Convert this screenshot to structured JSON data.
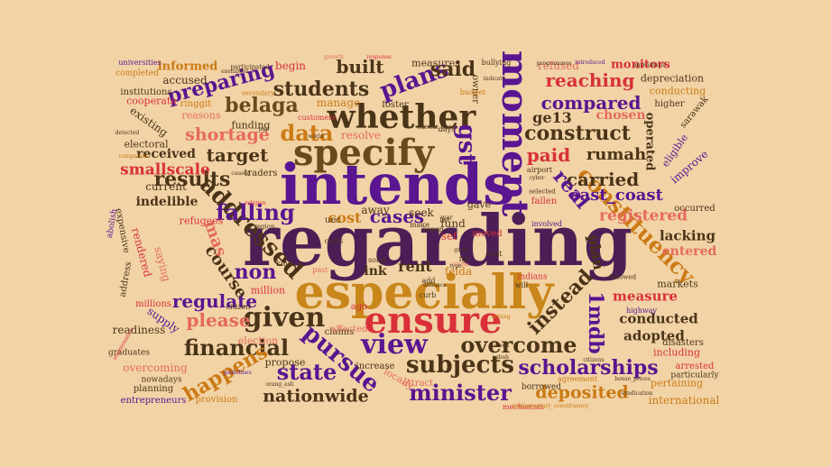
{
  "colors": {
    "background": "#f1d3a6",
    "palette": [
      "#5a1e6e",
      "#7a1aa0",
      "#cc7a14",
      "#d9303a",
      "#e56a5c",
      "#6b4a1a",
      "#4a3418"
    ]
  },
  "words": [
    {
      "text": "regarding",
      "color": "#4b1f55"
    },
    {
      "text": "intends",
      "color": "#5a1590"
    },
    {
      "text": "especially",
      "color": "#c9861a"
    },
    {
      "text": "specify",
      "color": "#6b4a1a"
    },
    {
      "text": "ensure",
      "color": "#d9303a"
    },
    {
      "text": "whether",
      "color": "#4a3418"
    },
    {
      "text": "moment",
      "color": "#5a1590"
    },
    {
      "text": "addressed",
      "color": "#4a3418"
    },
    {
      "text": "constituency",
      "color": "#cc7a14"
    },
    {
      "text": "pursue",
      "color": "#5a1590"
    },
    {
      "text": "view",
      "color": "#5a1590"
    },
    {
      "text": "given",
      "color": "#4a3418"
    },
    {
      "text": "minister",
      "color": "#5a1590"
    },
    {
      "text": "scholarships",
      "color": "#5a1590"
    },
    {
      "text": "subjects",
      "color": "#4a3418"
    },
    {
      "text": "overcome",
      "color": "#4a3418"
    },
    {
      "text": "financial",
      "color": "#4a3418"
    },
    {
      "text": "happens",
      "color": "#cc7a14"
    },
    {
      "text": "state",
      "color": "#5a1590"
    },
    {
      "text": "nationwide",
      "color": "#4a3418"
    },
    {
      "text": "deposited",
      "color": "#cc7a14"
    },
    {
      "text": "instead",
      "color": "#4a3418"
    },
    {
      "text": "1mdb",
      "color": "#5a1590"
    },
    {
      "text": "plans",
      "color": "#5a1590"
    },
    {
      "text": "gst",
      "color": "#5a1590"
    },
    {
      "text": "data",
      "color": "#cc7a14"
    },
    {
      "text": "students",
      "color": "#4a3418"
    },
    {
      "text": "preparing",
      "color": "#5a1590"
    },
    {
      "text": "belaga",
      "color": "#6b4a1a"
    },
    {
      "text": "shortage",
      "color": "#e56a5c"
    },
    {
      "text": "target",
      "color": "#4a3418"
    },
    {
      "text": "results",
      "color": "#4a3418"
    },
    {
      "text": "falling",
      "color": "#5a1590"
    },
    {
      "text": "cases",
      "color": "#5a1590"
    },
    {
      "text": "cost",
      "color": "#cc7a14"
    },
    {
      "text": "mas",
      "color": "#e56a5c"
    },
    {
      "text": "non",
      "color": "#5a1590"
    },
    {
      "text": "regulate",
      "color": "#5a1590"
    },
    {
      "text": "please",
      "color": "#e56a5c"
    },
    {
      "text": "course",
      "color": "#4a3418"
    },
    {
      "text": "rent",
      "color": "#4a3418"
    },
    {
      "text": "ink",
      "color": "#4a3418"
    },
    {
      "text": "compared",
      "color": "#5a1590"
    },
    {
      "text": "reaching",
      "color": "#d9303a"
    },
    {
      "text": "construct",
      "color": "#4a3418"
    },
    {
      "text": "paid",
      "color": "#d9303a"
    },
    {
      "text": "rumah",
      "color": "#4a3418"
    },
    {
      "text": "carried",
      "color": "#4a3418"
    },
    {
      "text": "east_coast",
      "color": "#5a1590"
    },
    {
      "text": "registered",
      "color": "#e56a5c"
    },
    {
      "text": "real",
      "color": "#5a1590"
    },
    {
      "text": "ge13",
      "color": "#4a3418"
    },
    {
      "text": "chosen",
      "color": "#e56a5c"
    },
    {
      "text": "said",
      "color": "#4a3418"
    },
    {
      "text": "built",
      "color": "#4a3418"
    },
    {
      "text": "measure",
      "color": "#d9303a"
    },
    {
      "text": "conducted",
      "color": "#4a3418"
    },
    {
      "text": "adopted",
      "color": "#4a3418"
    },
    {
      "text": "lacking",
      "color": "#4a3418"
    },
    {
      "text": "entered",
      "color": "#e56a5c"
    },
    {
      "text": "plan",
      "color": "#4a3418"
    },
    {
      "text": "smallscale",
      "color": "#d9303a"
    },
    {
      "text": "received",
      "color": "#4a3418"
    },
    {
      "text": "current",
      "color": "#4a3418"
    },
    {
      "text": "indelible",
      "color": "#4a3418"
    },
    {
      "text": "informed",
      "color": "#cc7a14"
    },
    {
      "text": "accused",
      "color": "#4a3418"
    },
    {
      "text": "existing",
      "color": "#4a3418"
    },
    {
      "text": "monitors",
      "color": "#d9303a"
    },
    {
      "text": "refused",
      "color": "#e56a5c"
    },
    {
      "text": "depreciation",
      "color": "#4a3418"
    },
    {
      "text": "conducting",
      "color": "#cc7a14"
    },
    {
      "text": "higher",
      "color": "#4a3418"
    },
    {
      "text": "measures",
      "color": "#4a3418"
    },
    {
      "text": "begin",
      "color": "#d9303a"
    },
    {
      "text": "manage",
      "color": "#cc7a14"
    },
    {
      "text": "foster",
      "color": "#4a3418"
    },
    {
      "text": "resolve",
      "color": "#e56a5c"
    },
    {
      "text": "funding",
      "color": "#4a3418"
    },
    {
      "text": "reasons",
      "color": "#e56a5c"
    },
    {
      "text": "ringgit",
      "color": "#cc7a14"
    },
    {
      "text": "cooperate",
      "color": "#d9303a"
    },
    {
      "text": "institutions",
      "color": "#4a3418"
    },
    {
      "text": "completed",
      "color": "#cc7a14"
    },
    {
      "text": "universities",
      "color": "#5a1590"
    },
    {
      "text": "electoral",
      "color": "#4a3418"
    },
    {
      "text": "improve",
      "color": "#5a1590"
    },
    {
      "text": "operated",
      "color": "#4a3418"
    },
    {
      "text": "sarawak",
      "color": "#4a3418"
    },
    {
      "text": "eligible",
      "color": "#5a1590"
    },
    {
      "text": "rendered",
      "color": "#d9303a"
    },
    {
      "text": "saying",
      "color": "#e56a5c"
    },
    {
      "text": "refugees",
      "color": "#d9303a"
    },
    {
      "text": "expensive",
      "color": "#4a3418"
    },
    {
      "text": "address",
      "color": "#4a3418"
    },
    {
      "text": "abolish",
      "color": "#5a1590"
    },
    {
      "text": "readiness",
      "color": "#4a3418"
    },
    {
      "text": "supply",
      "color": "#5a1590"
    },
    {
      "text": "millions",
      "color": "#d9303a"
    },
    {
      "text": "graduates",
      "color": "#4a3418"
    },
    {
      "text": "overcoming",
      "color": "#e56a5c"
    },
    {
      "text": "planning",
      "color": "#4a3418"
    },
    {
      "text": "nowadays",
      "color": "#4a3418"
    },
    {
      "text": "entrepreneurs",
      "color": "#5a1590"
    },
    {
      "text": "provision",
      "color": "#cc7a14"
    },
    {
      "text": "propose",
      "color": "#4a3418"
    },
    {
      "text": "election",
      "color": "#e56a5c"
    },
    {
      "text": "million",
      "color": "#d9303a"
    },
    {
      "text": "claims",
      "color": "#4a3418"
    },
    {
      "text": "locally",
      "color": "#e56a5c"
    },
    {
      "text": "increase",
      "color": "#4a3418"
    },
    {
      "text": "felda",
      "color": "#cc7a14"
    },
    {
      "text": "markets",
      "color": "#4a3418"
    },
    {
      "text": "including",
      "color": "#d9303a"
    },
    {
      "text": "disasters",
      "color": "#4a3418"
    },
    {
      "text": "international",
      "color": "#cc7a14"
    },
    {
      "text": "pertaining",
      "color": "#cc7a14"
    },
    {
      "text": "arrested",
      "color": "#d9303a"
    },
    {
      "text": "particularly",
      "color": "#4a3418"
    },
    {
      "text": "occurred",
      "color": "#4a3418"
    },
    {
      "text": "mechanism",
      "color": "#d9303a"
    },
    {
      "text": "borrowed",
      "color": "#4a3418"
    },
    {
      "text": "agreement",
      "color": "#cc7a14"
    },
    {
      "text": "attract",
      "color": "#e56a5c"
    },
    {
      "text": "away",
      "color": "#4a3418"
    },
    {
      "text": "seek",
      "color": "#4a3418"
    },
    {
      "text": "fund",
      "color": "#4a3418"
    },
    {
      "text": "set",
      "color": "#d9303a"
    },
    {
      "text": "gave",
      "color": "#4a3418"
    },
    {
      "text": "uec",
      "color": "#4a3418"
    },
    {
      "text": "traders",
      "color": "#4a3418"
    },
    {
      "text": "days",
      "color": "#4a3418"
    },
    {
      "text": "customers",
      "color": "#d9303a"
    },
    {
      "text": "owner",
      "color": "#4a3418"
    },
    {
      "text": "bullying",
      "color": "#4a3418"
    },
    {
      "text": "budget",
      "color": "#cc7a14"
    },
    {
      "text": "make",
      "color": "#4a3418"
    },
    {
      "text": "asean",
      "color": "#4a3418"
    },
    {
      "text": "costs",
      "color": "#4a3418"
    },
    {
      "text": "best",
      "color": "#4a3418"
    },
    {
      "text": "moved",
      "color": "#d9303a"
    },
    {
      "text": "fallen",
      "color": "#d9303a"
    },
    {
      "text": "involved",
      "color": "#5a1590"
    },
    {
      "text": "selected",
      "color": "#4a3418"
    },
    {
      "text": "airport",
      "color": "#4a3418"
    },
    {
      "text": "indians",
      "color": "#d9303a"
    },
    {
      "text": "will",
      "color": "#4a3418"
    },
    {
      "text": "highway",
      "color": "#5a1590"
    },
    {
      "text": "followed",
      "color": "#4a3418"
    },
    {
      "text": "curb",
      "color": "#4a3418"
    },
    {
      "text": "add",
      "color": "#4a3418"
    },
    {
      "text": "solar",
      "color": "#4a3418"
    },
    {
      "text": "ago",
      "color": "#d9303a"
    },
    {
      "text": "affected",
      "color": "#e56a5c"
    },
    {
      "text": "kind",
      "color": "#4a3418"
    },
    {
      "text": "region",
      "color": "#4a3418"
    },
    {
      "text": "citizen",
      "color": "#4a3418"
    },
    {
      "text": "secondary",
      "color": "#cc7a14"
    },
    {
      "text": "participated",
      "color": "#4a3418"
    },
    {
      "text": "agricultural",
      "color": "#4a3418"
    },
    {
      "text": "introduced",
      "color": "#5a1590"
    },
    {
      "text": "response",
      "color": "#d9303a"
    },
    {
      "text": "growth",
      "color": "#e56a5c"
    },
    {
      "text": "pay",
      "color": "#4a3418"
    },
    {
      "text": "world",
      "color": "#4a3418"
    },
    {
      "text": "caused",
      "color": "#4a3418"
    },
    {
      "text": "religion",
      "color": "#d9303a"
    },
    {
      "text": "detected",
      "color": "#4a3418"
    },
    {
      "text": "companies",
      "color": "#cc7a14"
    },
    {
      "text": "maintenance",
      "color": "#d9303a"
    },
    {
      "text": "guidelines",
      "color": "#5a1590"
    },
    {
      "text": "orang_asli",
      "color": "#4a3418"
    },
    {
      "text": "setting",
      "color": "#cc7a14"
    },
    {
      "text": "owed",
      "color": "#4a3418"
    },
    {
      "text": "sabah",
      "color": "#4a3418"
    },
    {
      "text": "citizens",
      "color": "#4a3418"
    },
    {
      "text": "programmes",
      "color": "#4a3418"
    },
    {
      "text": "cyber",
      "color": "#4a3418"
    },
    {
      "text": "indicate",
      "color": "#4a3418"
    },
    {
      "text": "current_status",
      "color": "#4a3418"
    },
    {
      "text": "house_prices",
      "color": "#4a3418"
    },
    {
      "text": "syndication",
      "color": "#4a3418"
    },
    {
      "text": "parliamentary_constituency",
      "color": "#cc7a14"
    },
    {
      "text": "fgv",
      "color": "#4a3418"
    },
    {
      "text": "create",
      "color": "#e56a5c"
    },
    {
      "text": "type",
      "color": "#4a3418"
    },
    {
      "text": "enhance",
      "color": "#4a3418"
    },
    {
      "text": "grow",
      "color": "#4a3418"
    },
    {
      "text": "exempted",
      "color": "#4a3418"
    },
    {
      "text": "past",
      "color": "#e56a5c"
    },
    {
      "text": "list",
      "color": "#4a3418"
    },
    {
      "text": "war",
      "color": "#4a3418"
    }
  ]
}
